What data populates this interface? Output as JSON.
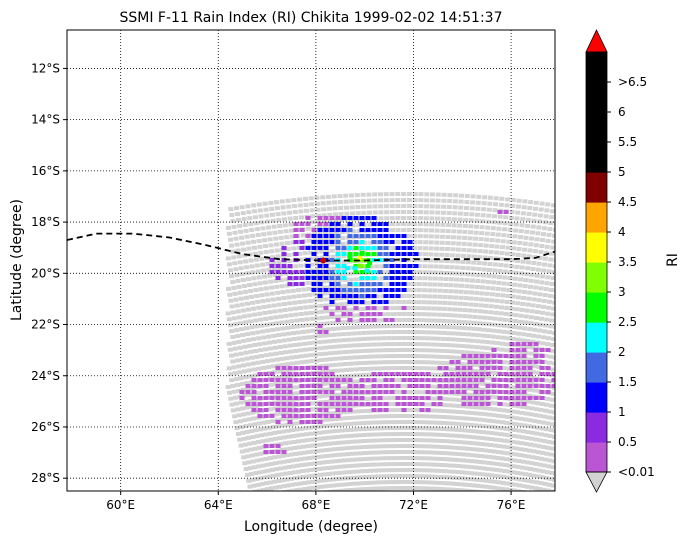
{
  "chart_data": {
    "type": "heatmap",
    "title": "SSMI F-11 Rain Index (RI) Chikita 1999-02-02 14:51:37",
    "xlabel": "Longitude (degree)",
    "ylabel": "Latitude (degree)",
    "xlim": [
      57.8,
      77.8
    ],
    "ylim": [
      -28.5,
      -10.5
    ],
    "x_ticks": [
      {
        "value": 60,
        "label": "60°E"
      },
      {
        "value": 64,
        "label": "64°E"
      },
      {
        "value": 68,
        "label": "68°E"
      },
      {
        "value": 72,
        "label": "72°E"
      },
      {
        "value": 76,
        "label": "76°E"
      }
    ],
    "y_ticks": [
      {
        "value": -12,
        "label": "12°S"
      },
      {
        "value": -14,
        "label": "14°S"
      },
      {
        "value": -16,
        "label": "16°S"
      },
      {
        "value": -18,
        "label": "18°S"
      },
      {
        "value": -20,
        "label": "20°S"
      },
      {
        "value": -22,
        "label": "22°S"
      },
      {
        "value": -24,
        "label": "24°S"
      },
      {
        "value": -26,
        "label": "26°S"
      },
      {
        "value": -28,
        "label": "28°S"
      }
    ],
    "grid": "dotted",
    "swath_background_color": "#d3d3d3",
    "track": [
      [
        57.8,
        -18.7
      ],
      [
        59.0,
        -18.45
      ],
      [
        60.5,
        -18.45
      ],
      [
        62.0,
        -18.6
      ],
      [
        63.5,
        -18.9
      ],
      [
        65.0,
        -19.25
      ],
      [
        66.5,
        -19.45
      ],
      [
        68.3,
        -19.5
      ],
      [
        70.0,
        -19.5
      ],
      [
        72.0,
        -19.45
      ],
      [
        74.0,
        -19.45
      ],
      [
        76.0,
        -19.45
      ],
      [
        77.0,
        -19.4
      ],
      [
        77.8,
        -19.15
      ]
    ],
    "storm_position": {
      "lon": 68.3,
      "lat": -19.5
    },
    "rain_cells": [
      {
        "lon": 69.6,
        "lat": -19.5,
        "ri": 3.2
      },
      {
        "lon": 69.8,
        "lat": -19.4,
        "ri": 3.6
      },
      {
        "lon": 70.0,
        "lat": -19.5,
        "ri": 3.1
      },
      {
        "lon": 69.4,
        "lat": -19.4,
        "ri": 2.8
      },
      {
        "lon": 70.2,
        "lat": -19.6,
        "ri": 2.7
      },
      {
        "lon": 69.8,
        "lat": -19.7,
        "ri": 3.3
      },
      {
        "lon": 69.9,
        "lat": -19.2,
        "ri": 2.6
      },
      {
        "lon": 69.6,
        "lat": -19.8,
        "ri": 2.4
      },
      {
        "lon": 70.1,
        "lat": -19.9,
        "ri": 2.2
      },
      {
        "lon": 69.3,
        "lat": -19.8,
        "ri": 2.2
      }
    ],
    "colorbar": {
      "label": "RI",
      "colors": [
        "#ba55d3",
        "#8a2be2",
        "#0000ff",
        "#4169e1",
        "#00ffff",
        "#00ff00",
        "#7fff00",
        "#ffff00",
        "#ffa500",
        "#800000",
        "#000000",
        "#000000",
        "#000000",
        "#000000"
      ],
      "ticks": [
        "<0.01",
        "0.5",
        "1",
        "1.5",
        "2",
        "2.5",
        "3",
        "3.5",
        "4",
        "4.5",
        "5",
        "5.5",
        "6",
        ">6.5"
      ],
      "under_color": "#d3d3d3",
      "over_color": "#ff0000"
    }
  }
}
